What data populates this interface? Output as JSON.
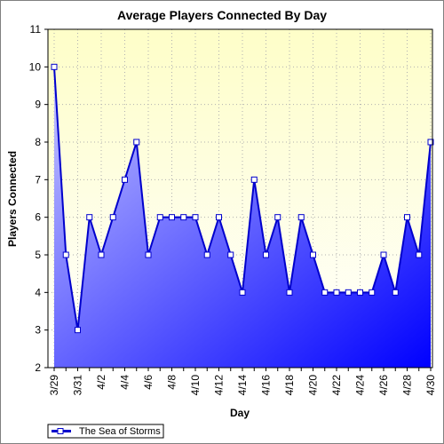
{
  "chart_data": {
    "type": "area",
    "title": "Average Players Connected By Day",
    "xlabel": "Day",
    "ylabel": "Players Connected",
    "ylim": [
      2,
      11
    ],
    "yticks": [
      2,
      3,
      4,
      5,
      6,
      7,
      8,
      9,
      10,
      11
    ],
    "x_tick_labels": [
      "3/29",
      "3/31",
      "4/2",
      "4/4",
      "4/6",
      "4/8",
      "4/10",
      "4/12",
      "4/14",
      "4/16",
      "4/18",
      "4/20",
      "4/22",
      "4/24",
      "4/26",
      "4/28",
      "4/30"
    ],
    "grid": true,
    "legend_position": "bottom-left",
    "categories": [
      "3/29",
      "3/30",
      "3/31",
      "4/1",
      "4/2",
      "4/3",
      "4/4",
      "4/5",
      "4/6",
      "4/7",
      "4/8",
      "4/9",
      "4/10",
      "4/11",
      "4/12",
      "4/13",
      "4/14",
      "4/15",
      "4/16",
      "4/17",
      "4/18",
      "4/19",
      "4/20",
      "4/21",
      "4/22",
      "4/23",
      "4/24",
      "4/25",
      "4/26",
      "4/27",
      "4/28",
      "4/29",
      "4/30"
    ],
    "series": [
      {
        "name": "The Sea of Storms",
        "values": [
          10,
          5,
          3,
          6,
          5,
          6,
          7,
          8,
          5,
          6,
          6,
          6,
          6,
          5,
          6,
          5,
          4,
          7,
          5,
          6,
          4,
          6,
          5,
          4,
          4,
          4,
          4,
          4,
          5,
          4,
          6,
          5,
          8
        ]
      }
    ],
    "colors": {
      "line": "#0000cc",
      "fill_light": "#c8c8ff",
      "fill_dark": "#0000ff",
      "plot_bg_top": "#fefec8",
      "plot_bg_bottom": "#ffffff",
      "grid": "#b0b0b0"
    }
  }
}
